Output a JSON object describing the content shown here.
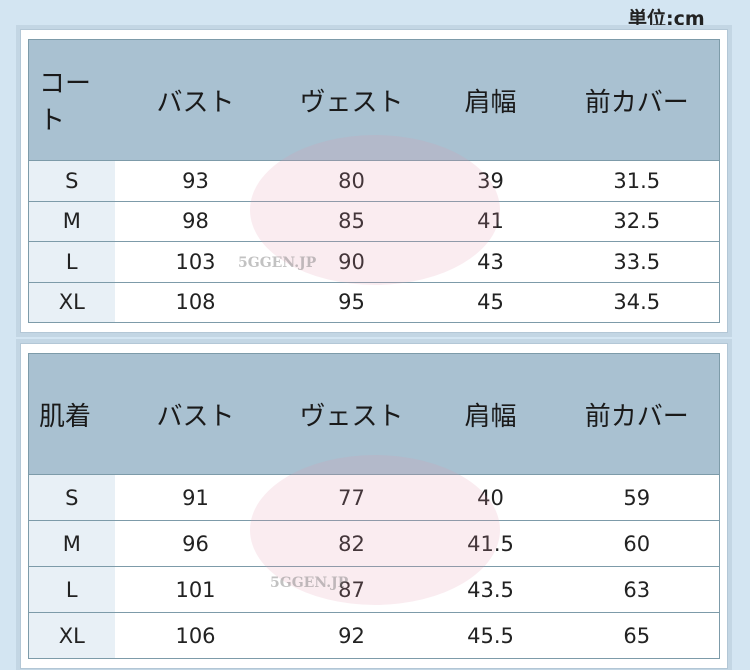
{
  "unit_label": "単位:cm",
  "watermark": "5GGEN.JP",
  "tables": [
    {
      "headers": [
        "コート",
        "バスト",
        "ヴェスト",
        "肩幅",
        "前カバー"
      ],
      "rows": [
        [
          "S",
          "93",
          "80",
          "39",
          "31.5"
        ],
        [
          "M",
          "98",
          "85",
          "41",
          "32.5"
        ],
        [
          "L",
          "103",
          "90",
          "43",
          "33.5"
        ],
        [
          "XL",
          "108",
          "95",
          "45",
          "34.5"
        ]
      ]
    },
    {
      "headers": [
        "肌着",
        "バスト",
        "ヴェスト",
        "肩幅",
        "前カバー"
      ],
      "rows": [
        [
          "S",
          "91",
          "77",
          "40",
          "59"
        ],
        [
          "M",
          "96",
          "82",
          "41.5",
          "60"
        ],
        [
          "L",
          "101",
          "87",
          "43.5",
          "63"
        ],
        [
          "XL",
          "106",
          "92",
          "45.5",
          "65"
        ]
      ]
    }
  ],
  "colors": {
    "header_bg": "#a9c1d1",
    "size_col_bg": "#e8f0f6",
    "page_bg": "#d3e5f2",
    "border": "#7d9ba9"
  }
}
